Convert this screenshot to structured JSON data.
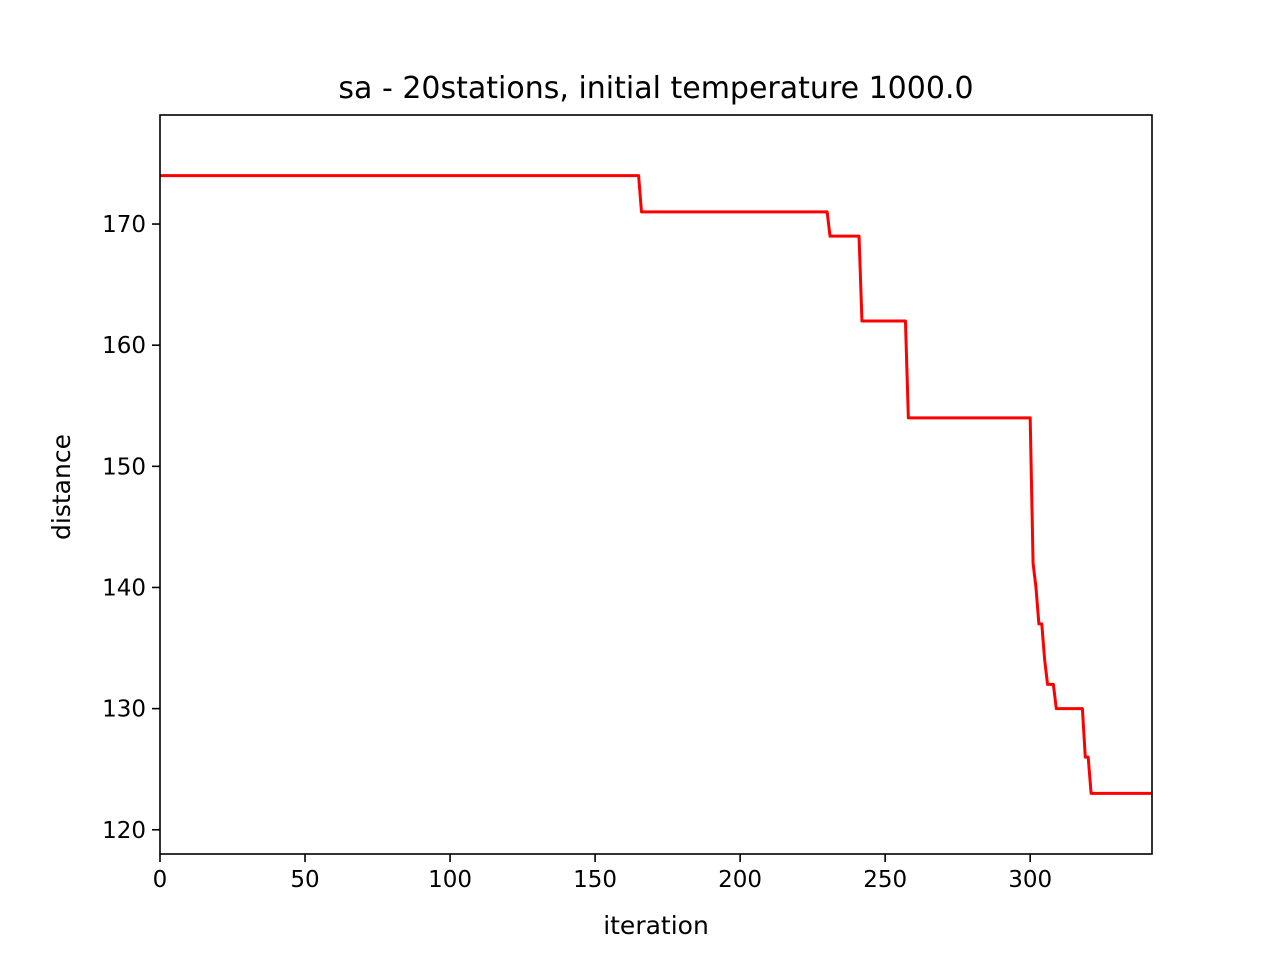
{
  "chart_data": {
    "type": "line",
    "title": "sa - 20stations, initial temperature 1000.0",
    "xlabel": "iteration",
    "ylabel": "distance",
    "xlim": [
      0,
      342
    ],
    "ylim": [
      118,
      179
    ],
    "xticks": [
      "0",
      "50",
      "100",
      "150",
      "200",
      "250",
      "300"
    ],
    "yticks": [
      "120",
      "130",
      "140",
      "150",
      "160",
      "170"
    ],
    "grid": false,
    "legend": "none",
    "series": [
      {
        "color": "#ff0000",
        "x": [
          0,
          165,
          166,
          230,
          231,
          241,
          242,
          257,
          258,
          300,
          301,
          302,
          303,
          304,
          305,
          306,
          307,
          308,
          309,
          318,
          319,
          320,
          321,
          342
        ],
        "y": [
          174,
          174,
          171,
          171,
          169,
          169,
          162,
          162,
          154,
          154,
          142,
          140,
          137,
          137,
          134,
          132,
          132,
          132,
          130,
          130,
          126,
          126,
          123,
          123
        ]
      }
    ]
  }
}
